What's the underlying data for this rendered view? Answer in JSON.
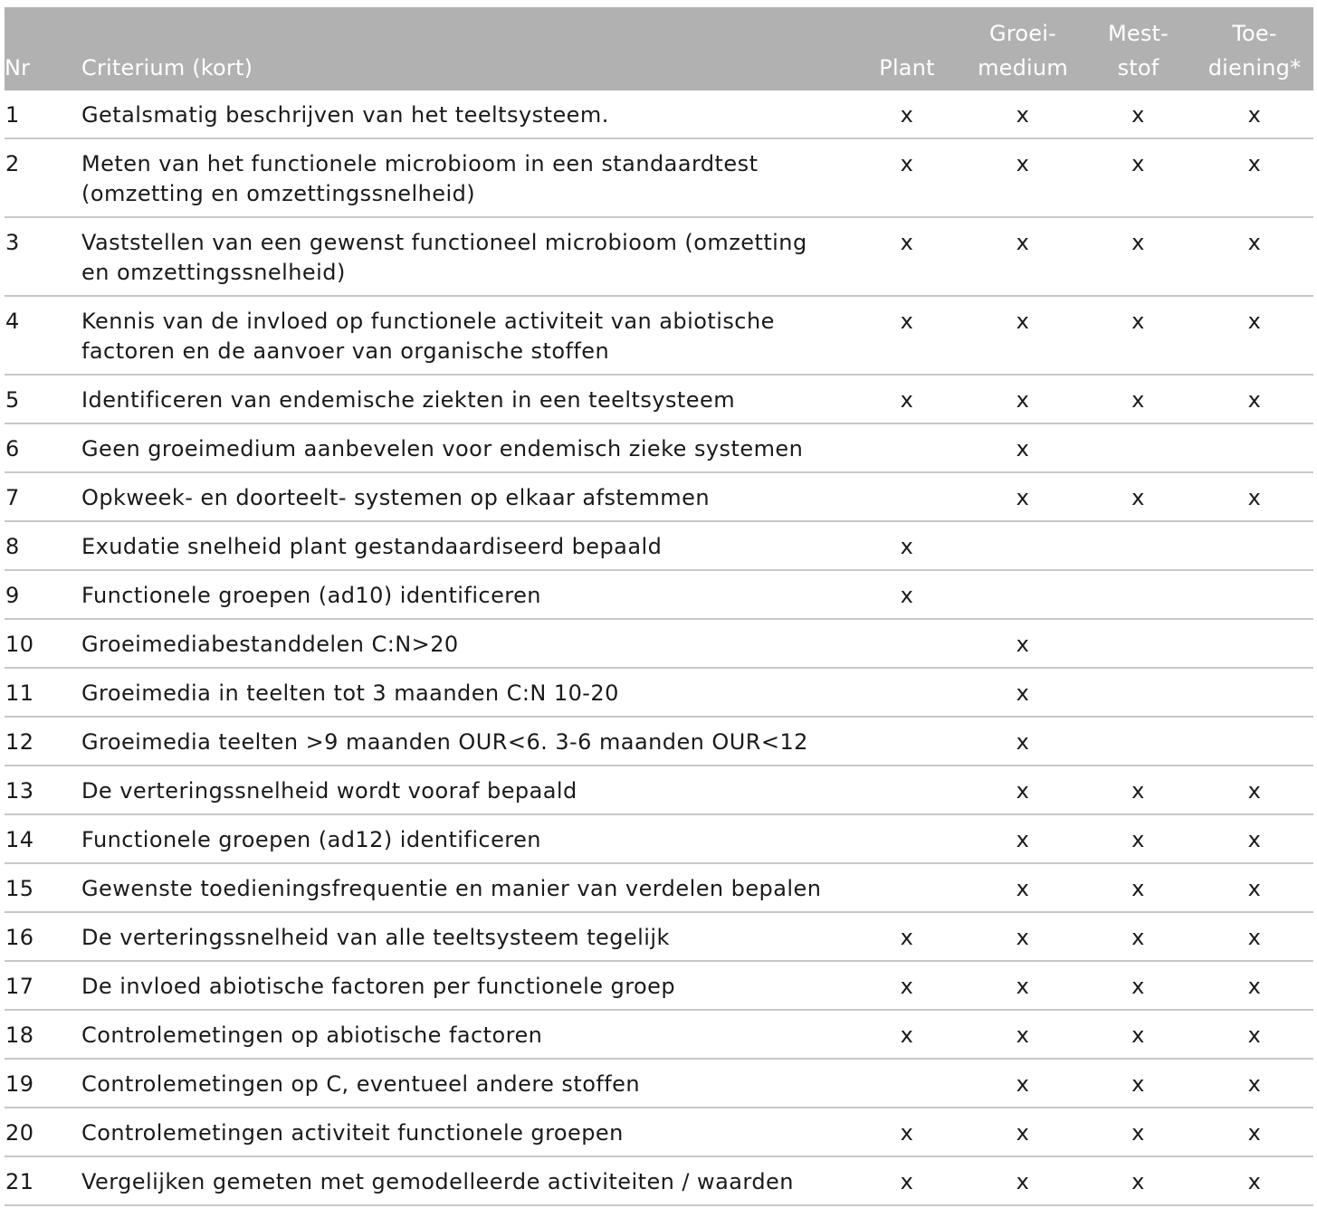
{
  "header": {
    "nr": "Nr",
    "criterium": "Criterium (kort)",
    "plant": "Plant",
    "groeimedium_1": "Groei-",
    "groeimedium_2": "medium",
    "meststof_1": "Mest-",
    "meststof_2": "stof",
    "toediening_1": "Toe-",
    "toediening_2": "diening*"
  },
  "rows": [
    {
      "nr": "1",
      "criterium": "Getalsmatig beschrijven van het teeltsysteem.",
      "plant": "x",
      "groeimedium": "x",
      "meststof": "x",
      "toediening": "x"
    },
    {
      "nr": "2",
      "criterium": "Meten van het functionele microbioom in een standaardtest (omzetting en omzettingssnelheid)",
      "plant": "x",
      "groeimedium": "x",
      "meststof": "x",
      "toediening": "x"
    },
    {
      "nr": "3",
      "criterium": "Vaststellen van een gewenst functioneel microbioom (omzetting en omzettingssnelheid)",
      "plant": "x",
      "groeimedium": "x",
      "meststof": "x",
      "toediening": "x"
    },
    {
      "nr": "4",
      "criterium": "Kennis van de invloed op functionele activiteit van abiotische factoren en de aanvoer van organische stoffen",
      "plant": "x",
      "groeimedium": "x",
      "meststof": "x",
      "toediening": "x"
    },
    {
      "nr": "5",
      "criterium": "Identificeren van endemische ziekten in een teeltsysteem",
      "plant": "x",
      "groeimedium": "x",
      "meststof": "x",
      "toediening": "x"
    },
    {
      "nr": "6",
      "criterium": "Geen groeimedium aanbevelen voor endemisch zieke systemen",
      "plant": "",
      "groeimedium": "x",
      "meststof": "",
      "toediening": ""
    },
    {
      "nr": "7",
      "criterium": "Opkweek- en doorteelt- systemen op elkaar afstemmen",
      "plant": "",
      "groeimedium": "x",
      "meststof": "x",
      "toediening": "x"
    },
    {
      "nr": "8",
      "criterium": "Exudatie snelheid plant gestandaardiseerd bepaald",
      "plant": "x",
      "groeimedium": "",
      "meststof": "",
      "toediening": ""
    },
    {
      "nr": "9",
      "criterium": "Functionele groepen (ad10) identificeren",
      "plant": "x",
      "groeimedium": "",
      "meststof": "",
      "toediening": ""
    },
    {
      "nr": "10",
      "criterium": "Groeimediabestanddelen C:N>20",
      "plant": "",
      "groeimedium": "x",
      "meststof": "",
      "toediening": ""
    },
    {
      "nr": "11",
      "criterium": "Groeimedia in teelten tot 3 maanden C:N 10-20",
      "plant": "",
      "groeimedium": "x",
      "meststof": "",
      "toediening": ""
    },
    {
      "nr": "12",
      "criterium": "Groeimedia teelten >9 maanden OUR<6. 3-6 maanden OUR<12",
      "plant": "",
      "groeimedium": "x",
      "meststof": "",
      "toediening": ""
    },
    {
      "nr": "13",
      "criterium": "De verteringssnelheid wordt vooraf bepaald",
      "plant": "",
      "groeimedium": "x",
      "meststof": "x",
      "toediening": "x"
    },
    {
      "nr": "14",
      "criterium": "Functionele groepen (ad12) identificeren",
      "plant": "",
      "groeimedium": "x",
      "meststof": "x",
      "toediening": "x"
    },
    {
      "nr": "15",
      "criterium": "Gewenste toedieningsfrequentie en manier van verdelen bepalen",
      "plant": "",
      "groeimedium": "x",
      "meststof": "x",
      "toediening": "x"
    },
    {
      "nr": "16",
      "criterium": "De verteringssnelheid van alle teeltsysteem tegelijk",
      "plant": "x",
      "groeimedium": "x",
      "meststof": "x",
      "toediening": "x"
    },
    {
      "nr": "17",
      "criterium": "De invloed abiotische factoren per functionele groep",
      "plant": "x",
      "groeimedium": "x",
      "meststof": "x",
      "toediening": "x"
    },
    {
      "nr": "18",
      "criterium": "Controlemetingen op abiotische factoren",
      "plant": "x",
      "groeimedium": "x",
      "meststof": "x",
      "toediening": "x"
    },
    {
      "nr": "19",
      "criterium": "Controlemetingen op C, eventueel andere stoffen",
      "plant": "",
      "groeimedium": "x",
      "meststof": "x",
      "toediening": "x"
    },
    {
      "nr": "20",
      "criterium": "Controlemetingen activiteit functionele groepen",
      "plant": "x",
      "groeimedium": "x",
      "meststof": "x",
      "toediening": "x"
    },
    {
      "nr": "21",
      "criterium": "Vergelijken gemeten met gemodelleerde activiteiten / waarden",
      "plant": "x",
      "groeimedium": "x",
      "meststof": "x",
      "toediening": "x"
    }
  ]
}
